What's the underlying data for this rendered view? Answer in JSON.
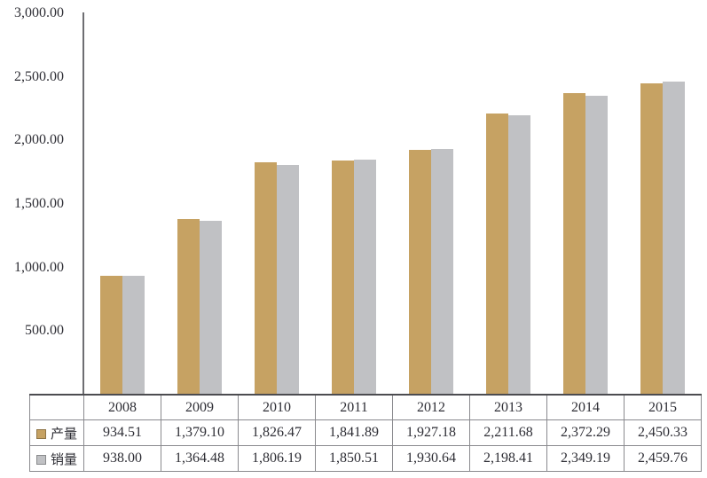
{
  "chart_data": {
    "type": "bar",
    "title": "",
    "xlabel": "",
    "ylabel": "",
    "ylim": [
      0,
      3000
    ],
    "ytick_interval": 500,
    "grid": false,
    "legend_position": "table-row-labels",
    "categories": [
      "2008",
      "2009",
      "2010",
      "2011",
      "2012",
      "2013",
      "2014",
      "2015"
    ],
    "yticks": [
      {
        "value": 3000,
        "label": "3,000.00"
      },
      {
        "value": 2500,
        "label": "2,500.00"
      },
      {
        "value": 2000,
        "label": "2,000.00"
      },
      {
        "value": 1500,
        "label": "1,500.00"
      },
      {
        "value": 1000,
        "label": "1,000.00"
      },
      {
        "value": 500,
        "label": "500.00"
      },
      {
        "value": 0,
        "label": "-"
      }
    ],
    "series": [
      {
        "name": "产量",
        "color": "#C6A263",
        "values": [
          934.51,
          1379.1,
          1826.47,
          1841.89,
          1927.18,
          2211.68,
          2372.29,
          2450.33
        ],
        "formatted": [
          "934.51",
          "1,379.10",
          "1,826.47",
          "1,841.89",
          "1,927.18",
          "2,211.68",
          "2,372.29",
          "2,450.33"
        ]
      },
      {
        "name": "销量",
        "color": "#C0C1C4",
        "values": [
          938.0,
          1364.48,
          1806.19,
          1850.51,
          1930.64,
          2198.41,
          2349.19,
          2459.76
        ],
        "formatted": [
          "938.00",
          "1,364.48",
          "1,806.19",
          "1,850.51",
          "1,930.64",
          "2,198.41",
          "2,349.19",
          "2,459.76"
        ]
      }
    ]
  }
}
